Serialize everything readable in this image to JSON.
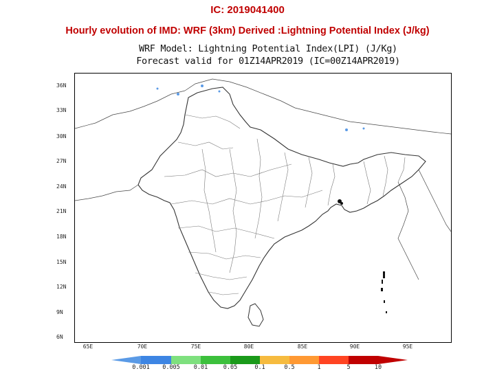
{
  "header": {
    "ic_title": "IC: 2019041400",
    "page_title": "Hourly evolution of IMD: WRF (3km) Derived :Lightning Potential Index (J/kg)"
  },
  "plot": {
    "title_line1": "WRF Model: Lightning Potential Index(LPI) (J/Kg)",
    "title_line2": "Forecast valid for 01Z14APR2019 (IC=00Z14APR2019)",
    "lat_labels": [
      "36N",
      "33N",
      "30N",
      "27N",
      "24N",
      "21N",
      "18N",
      "15N",
      "12N",
      "9N",
      "6N"
    ],
    "lon_labels": [
      "65E",
      "70E",
      "75E",
      "80E",
      "85E",
      "90E",
      "95E"
    ]
  },
  "legend": {
    "colors": [
      "#5a9ae6",
      "#3d85e3",
      "#7ee07e",
      "#3cc03c",
      "#1a9a1a",
      "#f6bb3f",
      "#ff9933",
      "#ff4422",
      "#c00000",
      "#c00000"
    ],
    "labels": [
      "0.001",
      "0.005",
      "0.01",
      "0.05",
      "0.1",
      "0.5",
      "1",
      "5",
      "10"
    ]
  }
}
